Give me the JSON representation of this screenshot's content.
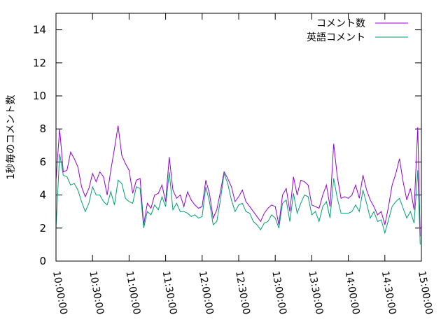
{
  "chart_data": {
    "type": "line",
    "title": "",
    "xlabel": "",
    "ylabel": "1秒毎のコメント数",
    "ylim": [
      0,
      15
    ],
    "yticks": [
      0,
      2,
      4,
      6,
      8,
      10,
      12,
      14
    ],
    "x_range": [
      "10:00:00",
      "15:00:00"
    ],
    "xticks": [
      "10:00:00",
      "10:30:00",
      "11:00:00",
      "11:30:00",
      "12:00:00",
      "12:30:00",
      "13:00:00",
      "13:30:00",
      "14:00:00",
      "14:30:00",
      "15:00:00"
    ],
    "legend_position": "top-right",
    "grid": false,
    "series": [
      {
        "name": "コメント数",
        "color": "#9400d3",
        "points": [
          [
            "10:00:00",
            4.9
          ],
          [
            "10:03:00",
            8.0
          ],
          [
            "10:06:00",
            5.4
          ],
          [
            "10:09:00",
            5.5
          ],
          [
            "10:12:00",
            6.6
          ],
          [
            "10:15:00",
            6.2
          ],
          [
            "10:18:00",
            5.7
          ],
          [
            "10:21:00",
            4.5
          ],
          [
            "10:24:00",
            3.9
          ],
          [
            "10:27:00",
            4.4
          ],
          [
            "10:30:00",
            5.3
          ],
          [
            "10:33:00",
            4.8
          ],
          [
            "10:36:00",
            5.4
          ],
          [
            "10:39:00",
            5.1
          ],
          [
            "10:42:00",
            4.0
          ],
          [
            "10:45:00",
            5.5
          ],
          [
            "10:48:00",
            6.8
          ],
          [
            "10:51:00",
            8.2
          ],
          [
            "10:54:00",
            6.4
          ],
          [
            "10:57:00",
            5.9
          ],
          [
            "11:00:00",
            5.5
          ],
          [
            "11:03:00",
            4.1
          ],
          [
            "11:06:00",
            4.9
          ],
          [
            "11:09:00",
            5.0
          ],
          [
            "11:12:00",
            2.2
          ],
          [
            "11:15:00",
            3.5
          ],
          [
            "11:18:00",
            3.2
          ],
          [
            "11:21:00",
            4.0
          ],
          [
            "11:24:00",
            4.1
          ],
          [
            "11:27:00",
            4.6
          ],
          [
            "11:30:00",
            3.6
          ],
          [
            "11:33:00",
            6.3
          ],
          [
            "11:36:00",
            4.3
          ],
          [
            "11:39:00",
            3.8
          ],
          [
            "11:42:00",
            4.0
          ],
          [
            "11:45:00",
            3.3
          ],
          [
            "11:48:00",
            4.2
          ],
          [
            "11:51:00",
            3.7
          ],
          [
            "11:54:00",
            3.4
          ],
          [
            "11:57:00",
            3.2
          ],
          [
            "12:00:00",
            3.3
          ],
          [
            "12:03:00",
            4.9
          ],
          [
            "12:06:00",
            4.1
          ],
          [
            "12:09:00",
            2.6
          ],
          [
            "12:12:00",
            3.1
          ],
          [
            "12:15:00",
            4.2
          ],
          [
            "12:18:00",
            5.4
          ],
          [
            "12:21:00",
            5.0
          ],
          [
            "12:24:00",
            4.5
          ],
          [
            "12:27:00",
            3.6
          ],
          [
            "12:30:00",
            3.9
          ],
          [
            "12:33:00",
            4.3
          ],
          [
            "12:36:00",
            3.6
          ],
          [
            "12:39:00",
            3.3
          ],
          [
            "12:42:00",
            3.0
          ],
          [
            "12:45:00",
            2.7
          ],
          [
            "12:48:00",
            2.4
          ],
          [
            "12:51:00",
            2.9
          ],
          [
            "12:54:00",
            3.2
          ],
          [
            "12:57:00",
            3.4
          ],
          [
            "13:00:00",
            3.3
          ],
          [
            "13:03:00",
            2.2
          ],
          [
            "13:06:00",
            4.0
          ],
          [
            "13:09:00",
            4.4
          ],
          [
            "13:12:00",
            3.0
          ],
          [
            "13:15:00",
            5.1
          ],
          [
            "13:18:00",
            4.0
          ],
          [
            "13:21:00",
            4.9
          ],
          [
            "13:24:00",
            4.8
          ],
          [
            "13:27:00",
            4.6
          ],
          [
            "13:30:00",
            3.4
          ],
          [
            "13:33:00",
            3.3
          ],
          [
            "13:36:00",
            3.2
          ],
          [
            "13:39:00",
            4.0
          ],
          [
            "13:42:00",
            4.6
          ],
          [
            "13:45:00",
            3.3
          ],
          [
            "13:48:00",
            7.1
          ],
          [
            "13:51:00",
            5.1
          ],
          [
            "13:54:00",
            3.8
          ],
          [
            "13:57:00",
            3.9
          ],
          [
            "14:00:00",
            3.8
          ],
          [
            "14:03:00",
            4.0
          ],
          [
            "14:06:00",
            4.6
          ],
          [
            "14:09:00",
            3.8
          ],
          [
            "14:12:00",
            5.2
          ],
          [
            "14:15:00",
            4.3
          ],
          [
            "14:18:00",
            3.7
          ],
          [
            "14:21:00",
            3.3
          ],
          [
            "14:24:00",
            2.8
          ],
          [
            "14:27:00",
            3.0
          ],
          [
            "14:30:00",
            2.2
          ],
          [
            "14:33:00",
            3.3
          ],
          [
            "14:36:00",
            4.6
          ],
          [
            "14:39:00",
            5.3
          ],
          [
            "14:42:00",
            6.2
          ],
          [
            "14:45:00",
            4.8
          ],
          [
            "14:48:00",
            3.7
          ],
          [
            "14:51:00",
            4.4
          ],
          [
            "14:54:00",
            3.1
          ],
          [
            "14:57:00",
            8.1
          ],
          [
            "14:59:00",
            1.5
          ]
        ]
      },
      {
        "name": "英語コメント",
        "color": "#009e73",
        "points": [
          [
            "10:00:00",
            2.0
          ],
          [
            "10:03:00",
            6.5
          ],
          [
            "10:06:00",
            5.2
          ],
          [
            "10:09:00",
            5.1
          ],
          [
            "10:12:00",
            4.6
          ],
          [
            "10:15:00",
            4.7
          ],
          [
            "10:18:00",
            4.3
          ],
          [
            "10:21:00",
            3.6
          ],
          [
            "10:24:00",
            3.0
          ],
          [
            "10:27:00",
            3.5
          ],
          [
            "10:30:00",
            4.5
          ],
          [
            "10:33:00",
            4.0
          ],
          [
            "10:36:00",
            4.0
          ],
          [
            "10:39:00",
            3.6
          ],
          [
            "10:42:00",
            3.4
          ],
          [
            "10:45:00",
            4.2
          ],
          [
            "10:48:00",
            3.4
          ],
          [
            "10:51:00",
            4.9
          ],
          [
            "10:54:00",
            4.7
          ],
          [
            "10:57:00",
            3.8
          ],
          [
            "11:00:00",
            3.6
          ],
          [
            "11:03:00",
            3.5
          ],
          [
            "11:06:00",
            4.5
          ],
          [
            "11:09:00",
            4.4
          ],
          [
            "11:12:00",
            2.0
          ],
          [
            "11:15:00",
            3.0
          ],
          [
            "11:18:00",
            2.8
          ],
          [
            "11:21:00",
            3.4
          ],
          [
            "11:24:00",
            3.1
          ],
          [
            "11:27:00",
            3.9
          ],
          [
            "11:30:00",
            3.3
          ],
          [
            "11:33:00",
            5.4
          ],
          [
            "11:36:00",
            3.1
          ],
          [
            "11:39:00",
            3.5
          ],
          [
            "11:42:00",
            3.0
          ],
          [
            "11:45:00",
            3.0
          ],
          [
            "11:48:00",
            2.9
          ],
          [
            "11:51:00",
            2.7
          ],
          [
            "11:54:00",
            2.8
          ],
          [
            "11:57:00",
            2.6
          ],
          [
            "12:00:00",
            2.7
          ],
          [
            "12:03:00",
            4.5
          ],
          [
            "12:06:00",
            3.6
          ],
          [
            "12:09:00",
            2.2
          ],
          [
            "12:12:00",
            2.4
          ],
          [
            "12:15:00",
            3.7
          ],
          [
            "12:18:00",
            5.3
          ],
          [
            "12:21:00",
            4.7
          ],
          [
            "12:24:00",
            3.7
          ],
          [
            "12:27:00",
            3.0
          ],
          [
            "12:30:00",
            3.4
          ],
          [
            "12:33:00",
            3.5
          ],
          [
            "12:36:00",
            3.0
          ],
          [
            "12:39:00",
            2.9
          ],
          [
            "12:42:00",
            2.4
          ],
          [
            "12:45:00",
            2.2
          ],
          [
            "12:48:00",
            1.9
          ],
          [
            "12:51:00",
            2.3
          ],
          [
            "12:54:00",
            2.4
          ],
          [
            "12:57:00",
            2.8
          ],
          [
            "13:00:00",
            2.6
          ],
          [
            "13:03:00",
            2.0
          ],
          [
            "13:06:00",
            3.5
          ],
          [
            "13:09:00",
            3.7
          ],
          [
            "13:12:00",
            2.4
          ],
          [
            "13:15:00",
            4.1
          ],
          [
            "13:18:00",
            2.9
          ],
          [
            "13:21:00",
            3.5
          ],
          [
            "13:24:00",
            4.0
          ],
          [
            "13:27:00",
            3.9
          ],
          [
            "13:30:00",
            2.8
          ],
          [
            "13:33:00",
            3.0
          ],
          [
            "13:36:00",
            2.4
          ],
          [
            "13:39:00",
            3.3
          ],
          [
            "13:42:00",
            3.6
          ],
          [
            "13:45:00",
            2.6
          ],
          [
            "13:48:00",
            5.0
          ],
          [
            "13:51:00",
            3.8
          ],
          [
            "13:54:00",
            2.9
          ],
          [
            "13:57:00",
            2.9
          ],
          [
            "14:00:00",
            2.9
          ],
          [
            "14:03:00",
            3.0
          ],
          [
            "14:06:00",
            3.4
          ],
          [
            "14:09:00",
            3.0
          ],
          [
            "14:12:00",
            4.3
          ],
          [
            "14:15:00",
            3.5
          ],
          [
            "14:18:00",
            2.6
          ],
          [
            "14:21:00",
            3.0
          ],
          [
            "14:24:00",
            2.4
          ],
          [
            "14:27:00",
            2.5
          ],
          [
            "14:30:00",
            1.7
          ],
          [
            "14:33:00",
            2.5
          ],
          [
            "14:36:00",
            3.3
          ],
          [
            "14:39:00",
            3.6
          ],
          [
            "14:42:00",
            3.8
          ],
          [
            "14:45:00",
            3.2
          ],
          [
            "14:48:00",
            2.6
          ],
          [
            "14:51:00",
            3.0
          ],
          [
            "14:54:00",
            2.3
          ],
          [
            "14:57:00",
            5.5
          ],
          [
            "14:59:00",
            1.0
          ]
        ]
      }
    ]
  }
}
